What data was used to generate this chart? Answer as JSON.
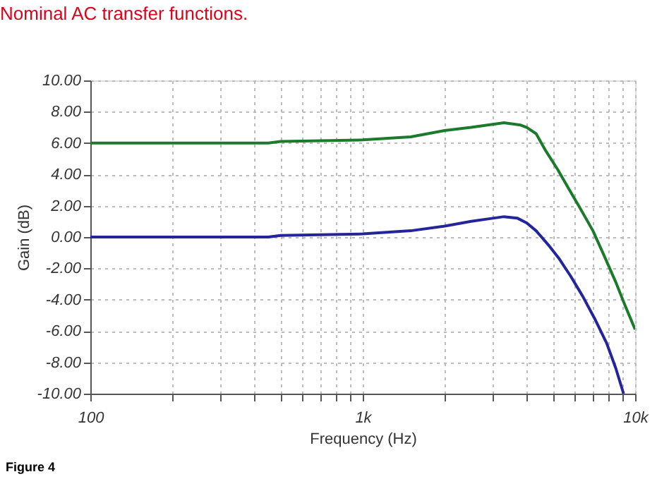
{
  "chart_data": {
    "type": "line",
    "title": "Nominal AC transfer functions.",
    "xlabel": "Frequency (Hz)",
    "ylabel": "Gain (dB)",
    "log": "x",
    "grid": true,
    "legend": false,
    "marker": "none",
    "line_style": "solid",
    "annotations": [
      "Figure 4"
    ],
    "xlim": [
      100,
      10000
    ],
    "xticks": [
      {
        "value": 100,
        "label": "100"
      },
      {
        "value": 200,
        "label": null
      },
      {
        "value": 300,
        "label": null
      },
      {
        "value": 400,
        "label": null
      },
      {
        "value": 500,
        "label": null
      },
      {
        "value": 600,
        "label": null
      },
      {
        "value": 700,
        "label": null
      },
      {
        "value": 800,
        "label": null
      },
      {
        "value": 900,
        "label": null
      },
      {
        "value": 1000,
        "label": "1k"
      },
      {
        "value": 2000,
        "label": null
      },
      {
        "value": 3000,
        "label": null
      },
      {
        "value": 4000,
        "label": null
      },
      {
        "value": 5000,
        "label": null
      },
      {
        "value": 6000,
        "label": null
      },
      {
        "value": 7000,
        "label": null
      },
      {
        "value": 8000,
        "label": null
      },
      {
        "value": 9000,
        "label": null
      },
      {
        "value": 10000,
        "label": "10k"
      }
    ],
    "ylim": [
      -10,
      10
    ],
    "yticks": [
      {
        "value": -10,
        "label": "-10.00"
      },
      {
        "value": -8,
        "label": "-8.00"
      },
      {
        "value": -6,
        "label": "-6.00"
      },
      {
        "value": -4,
        "label": "-4.00"
      },
      {
        "value": -2,
        "label": "-2.00"
      },
      {
        "value": 0,
        "label": "0.00"
      },
      {
        "value": 2,
        "label": "2.00"
      },
      {
        "value": 4,
        "label": "4.00"
      },
      {
        "value": 6,
        "label": "6.00"
      },
      {
        "value": 8,
        "label": "8.00"
      },
      {
        "value": 10,
        "label": "10.00"
      }
    ],
    "series": [
      {
        "color": "#1b7a2b",
        "x": [
          100,
          200,
          450,
          500,
          1000,
          1500,
          2000,
          2500,
          3000,
          3300,
          3800,
          4000,
          4330,
          4700,
          5200,
          5700,
          6300,
          7000,
          7700,
          8500,
          9200,
          10000
        ],
        "values": [
          6.0,
          6.0,
          6.0,
          6.1,
          6.2,
          6.4,
          6.8,
          7.0,
          7.2,
          7.3,
          7.15,
          7.0,
          6.6,
          5.5,
          4.3,
          3.1,
          1.8,
          0.4,
          -1.2,
          -2.9,
          -4.4,
          -5.9
        ]
      },
      {
        "color": "#25259a",
        "x": [
          100,
          200,
          450,
          500,
          1000,
          1500,
          2000,
          2500,
          3000,
          3300,
          3700,
          4000,
          4330,
          4800,
          5270,
          5800,
          6430,
          7100,
          7870,
          8500,
          9070
        ],
        "values": [
          0.0,
          0.0,
          0.0,
          0.1,
          0.2,
          0.4,
          0.7,
          1.0,
          1.2,
          1.3,
          1.2,
          0.9,
          0.4,
          -0.5,
          -1.4,
          -2.5,
          -3.8,
          -5.2,
          -6.8,
          -8.4,
          -10.0
        ]
      }
    ]
  }
}
